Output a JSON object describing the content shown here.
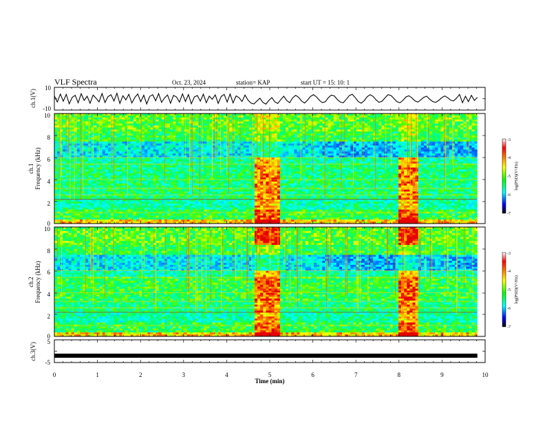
{
  "header": {
    "title": "VLF Spectra",
    "date": "Oct. 23, 2024",
    "station": "station= KAP",
    "start": "start  UT =   15: 10: 1"
  },
  "colorbar": {
    "label": "log(PSD)(V²/Hz)",
    "ticks": [
      "-3",
      "-4",
      "-5",
      "-6",
      "-7"
    ],
    "colors": [
      "#ffffff",
      "#ff0000",
      "#ffff00",
      "#00ff00",
      "#00ffff",
      "#0000ff",
      "#000000"
    ]
  },
  "chart_data": [
    {
      "type": "line",
      "name": "waveform",
      "ylabel": "ch.1(V)",
      "ylim": [
        -10,
        10
      ],
      "ytick_labels": [
        "10",
        "-10"
      ],
      "xlim": [
        0,
        10
      ],
      "trace_color": "#000000",
      "samples": [
        2.5,
        -3.0,
        4.1,
        -2.2,
        3.8,
        -4.5,
        1.2,
        3.0,
        -3.6,
        4.4,
        -1.5,
        2.2,
        -4.0,
        3.2,
        0.5,
        -2.8,
        4.6,
        -3.3,
        1.8,
        3.5,
        -2.0,
        4.8,
        -4.2,
        2.6,
        -1.0,
        3.9,
        -3.8,
        1.1,
        4.2,
        -2.6,
        3.1,
        -4.6,
        2.0,
        3.6,
        -1.8,
        4.5,
        -3.2,
        0.8,
        3.3,
        -4.0,
        2.9,
        1.5,
        -3.0,
        4.3,
        -2.4,
        3.7,
        -4.4,
        1.6,
        2.8,
        -2.1,
        4.0,
        -3.5,
        2.3,
        -0.5,
        3.4,
        -4.1,
        1.9,
        3.8,
        -2.9,
        4.1,
        -3.7,
        2.5,
        0.9,
        -2.5,
        3.2,
        -1.2,
        -3.8,
        -4.6,
        -2.0,
        0.5,
        -3.2,
        -4.8,
        -1.5,
        1.0,
        -2.8,
        -4.2,
        -0.8,
        2.2,
        -1.5,
        -3.5,
        0.8,
        3.0,
        1.2,
        -2.0,
        -3.8,
        -1.2,
        2.0,
        3.6,
        1.5,
        -1.5,
        -3.5,
        -2.6,
        1.0,
        3.2,
        2.4,
        -0.8,
        -3.0,
        -3.6,
        -0.5,
        2.8,
        3.9,
        1.0,
        -2.5,
        -4.0,
        -1.8,
        1.8,
        3.5,
        2.0,
        -1.0,
        -3.2,
        -2.2,
        0.8,
        3.6,
        2.8,
        0.2,
        -2.6,
        -3.6,
        -1.5,
        1.5,
        2.6,
        0.8,
        -1.8,
        -3.0,
        -1.0,
        1.2,
        2.2,
        -0.5,
        -2.5,
        -3.2,
        -1.5,
        0.8,
        2.4,
        1.0,
        -1.2,
        -2.0,
        0.5,
        3.8,
        -3.5,
        2.2,
        -2.6,
        3.0,
        -1.6,
        1.2
      ]
    },
    {
      "type": "heatmap",
      "name": "spectrogram-ch1",
      "ylabel": "ch.1",
      "ylabel2": "Frequency (kHz)",
      "ylim": [
        0,
        10
      ],
      "ytick_labels": [
        "10",
        "8",
        "6",
        "4",
        "2",
        "0"
      ],
      "xlim": [
        0,
        10
      ],
      "data_end_min": 9.82,
      "bursts": [
        [
          4.66,
          5.24
        ],
        [
          7.98,
          8.45
        ]
      ]
    },
    {
      "type": "heatmap",
      "name": "spectrogram-ch2",
      "ylabel": "ch.2",
      "ylabel2": "Frequency (kHz)",
      "ylim": [
        0,
        10
      ],
      "ytick_labels": [
        "10",
        "8",
        "6",
        "4",
        "2",
        "0"
      ],
      "xlim": [
        0,
        10
      ],
      "data_end_min": 9.82,
      "bursts": [
        [
          4.66,
          5.24
        ],
        [
          7.98,
          8.45
        ]
      ]
    },
    {
      "type": "line",
      "name": "channel-3",
      "ylabel": "ch.3(V)",
      "ylim": [
        -5,
        5
      ],
      "ytick_labels": [
        "5",
        "-5"
      ],
      "xlim": [
        0,
        10
      ],
      "xlabel": "Time (min)",
      "xtick_labels": [
        "0",
        "1",
        "2",
        "3",
        "4",
        "5",
        "6",
        "7",
        "8",
        "9",
        "10"
      ],
      "level": -2.0
    }
  ]
}
